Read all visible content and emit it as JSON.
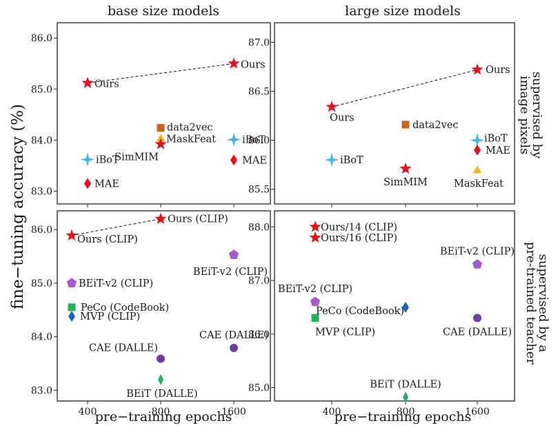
{
  "figure": {
    "col_titles": [
      "base size models",
      "large size models"
    ],
    "side_titles": [
      [
        "supervised by",
        "image pixels"
      ],
      [
        "supervised by a",
        "pre-trained teacher"
      ]
    ],
    "ylabel": "fine−tuning accuracy (%)",
    "xlabel": "pre−training epochs"
  },
  "chart_data": [
    {
      "type": "scatter",
      "panel": "base-pixels",
      "ylim": [
        82.75,
        86.3
      ],
      "yticks": [
        "83.0",
        "84.0",
        "85.0",
        "86.0"
      ],
      "xticks": [
        "400",
        "800",
        "1600"
      ],
      "grid": false,
      "trend": "Ours",
      "points": [
        {
          "name": "Ours",
          "x": 400,
          "y": 85.12,
          "shape": "star",
          "color": "#e8101c"
        },
        {
          "name": "Ours",
          "x": 1600,
          "y": 85.5,
          "shape": "star",
          "color": "#e8101c"
        },
        {
          "name": "data2vec",
          "x": 800,
          "y": 84.24,
          "shape": "square",
          "color": "#c8661e"
        },
        {
          "name": "MaskFeat",
          "x": 800,
          "y": 84.04,
          "shape": "triangle",
          "color": "#f4b51c"
        },
        {
          "name": "SimMIM",
          "x": 800,
          "y": 83.92,
          "shape": "star",
          "color": "#e8101c"
        },
        {
          "name": "iBoT",
          "x": 400,
          "y": 83.62,
          "shape": "cross",
          "color": "#3fb4f0"
        },
        {
          "name": "iBoT",
          "x": 1600,
          "y": 84.01,
          "shape": "cross",
          "color": "#3fb4f0"
        },
        {
          "name": "MAE",
          "x": 400,
          "y": 83.15,
          "shape": "diamond",
          "color": "#e8101c"
        },
        {
          "name": "MAE",
          "x": 1600,
          "y": 83.61,
          "shape": "diamond",
          "color": "#e8101c"
        }
      ]
    },
    {
      "type": "scatter",
      "panel": "large-pixels",
      "ylim": [
        85.35,
        87.2
      ],
      "yticks": [
        "85.5",
        "86.0",
        "86.5",
        "87.0"
      ],
      "xticks": [
        "400",
        "800",
        "1600"
      ],
      "grid": false,
      "trend": "Ours",
      "points": [
        {
          "name": "Ours",
          "x": 400,
          "y": 86.34,
          "shape": "star",
          "color": "#e8101c"
        },
        {
          "name": "Ours",
          "x": 1600,
          "y": 86.72,
          "shape": "star",
          "color": "#e8101c"
        },
        {
          "name": "data2vec",
          "x": 800,
          "y": 86.16,
          "shape": "square",
          "color": "#c8661e"
        },
        {
          "name": "iBoT",
          "x": 400,
          "y": 85.8,
          "shape": "cross",
          "color": "#3fb4f0"
        },
        {
          "name": "iBoT",
          "x": 1600,
          "y": 86.0,
          "shape": "cross",
          "color": "#3fb4f0"
        },
        {
          "name": "SimMIM",
          "x": 800,
          "y": 85.71,
          "shape": "star",
          "color": "#e8101c"
        },
        {
          "name": "MAE",
          "x": 1600,
          "y": 85.9,
          "shape": "diamond",
          "color": "#e8101c"
        },
        {
          "name": "MaskFeat",
          "x": 1600,
          "y": 85.7,
          "shape": "triangle",
          "color": "#f4b51c"
        }
      ]
    },
    {
      "type": "scatter",
      "panel": "base-teacher",
      "ylim": [
        82.8,
        86.35
      ],
      "yticks": [
        "83.0",
        "84.0",
        "85.0",
        "86.0"
      ],
      "xticks": [
        "400",
        "800",
        "1600"
      ],
      "grid": false,
      "trend": "Ours (CLIP)",
      "points": [
        {
          "name": "Ours (CLIP)",
          "x": 300,
          "y": 85.89,
          "shape": "star",
          "color": "#e8101c"
        },
        {
          "name": "Ours (CLIP)",
          "x": 800,
          "y": 86.2,
          "shape": "star",
          "color": "#e8101c"
        },
        {
          "name": "BEiT-v2 (CLIP)",
          "x": 300,
          "y": 85.0,
          "shape": "pentagon",
          "color": "#a55ad0"
        },
        {
          "name": "BEiT-v2 (CLIP)",
          "x": 1600,
          "y": 85.53,
          "shape": "pentagon",
          "color": "#a55ad0"
        },
        {
          "name": "PeCo (CodeBook)",
          "x": 300,
          "y": 84.55,
          "shape": "square",
          "color": "#21b256"
        },
        {
          "name": "MVP (CLIP)",
          "x": 300,
          "y": 84.38,
          "shape": "diamond",
          "color": "#1866c4"
        },
        {
          "name": "CAE (DALLE)",
          "x": 800,
          "y": 83.59,
          "shape": "circle",
          "color": "#6a3fa0"
        },
        {
          "name": "CAE (DALLE)",
          "x": 1600,
          "y": 83.79,
          "shape": "circle",
          "color": "#6a3fa0"
        },
        {
          "name": "BEiT (DALLE)",
          "x": 800,
          "y": 83.2,
          "shape": "thin-diamond",
          "color": "#25b456"
        }
      ]
    },
    {
      "type": "scatter",
      "panel": "large-teacher",
      "ylim": [
        84.75,
        88.3
      ],
      "yticks": [
        "85.0",
        "86.0",
        "87.0",
        "88.0"
      ],
      "xticks": [
        "400",
        "800",
        "1600"
      ],
      "grid": false,
      "points": [
        {
          "name": "Ours/14 (CLIP)",
          "x": 300,
          "y": 88.0,
          "shape": "star",
          "color": "#e8101c"
        },
        {
          "name": "Ours/16 (CLIP)",
          "x": 300,
          "y": 87.8,
          "shape": "star",
          "color": "#e8101c"
        },
        {
          "name": "BEiT-v2 (CLIP)",
          "x": 300,
          "y": 86.6,
          "shape": "pentagon",
          "color": "#a55ad0"
        },
        {
          "name": "BEiT-v2 (CLIP)",
          "x": 1600,
          "y": 87.3,
          "shape": "pentagon",
          "color": "#a55ad0"
        },
        {
          "name": "MVP (CLIP)",
          "x": 300,
          "y": 86.3,
          "shape": "square",
          "color": "#21b256"
        },
        {
          "name": "PeCo (CodeBook)",
          "x": 800,
          "y": 86.5,
          "shape": "diamond",
          "color": "#1866c4"
        },
        {
          "name": "CAE (DALLE)",
          "x": 1600,
          "y": 86.3,
          "shape": "circle",
          "color": "#6a3fa0"
        },
        {
          "name": "BEiT (DALLE)",
          "x": 800,
          "y": 84.82,
          "shape": "thin-diamond",
          "color": "#25b456"
        }
      ]
    }
  ]
}
